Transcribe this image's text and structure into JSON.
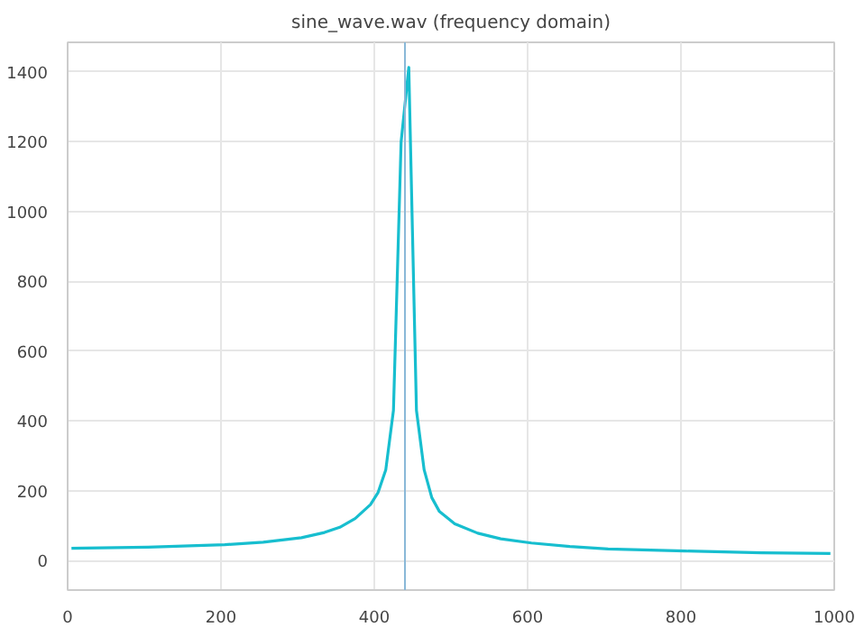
{
  "chart_data": {
    "type": "line",
    "title": "sine_wave.wav (frequency domain)",
    "x": [
      5,
      105,
      205,
      255,
      305,
      335,
      355,
      375,
      395,
      405,
      415,
      425,
      435,
      445,
      455,
      465,
      475,
      485,
      505,
      535,
      565,
      605,
      655,
      705,
      805,
      905,
      995
    ],
    "series": [
      {
        "color": "#17becf",
        "values": [
          35,
          38,
          45,
          52,
          65,
          80,
          95,
          120,
          160,
          195,
          260,
          430,
          1200,
          1413,
          430,
          260,
          180,
          140,
          105,
          78,
          62,
          50,
          40,
          33,
          27,
          22,
          20
        ]
      }
    ],
    "xlim": [
      0,
      1000
    ],
    "xticks": [
      0,
      200,
      400,
      600,
      800,
      1000
    ],
    "ylim": [
      -85,
      1485
    ],
    "yticks": [
      0,
      200,
      400,
      600,
      800,
      1000,
      1200,
      1400
    ],
    "ref_lines": [
      {
        "axis": "x",
        "value": 440,
        "label": null,
        "color": "#8ab8d8"
      }
    ],
    "grid": true
  }
}
